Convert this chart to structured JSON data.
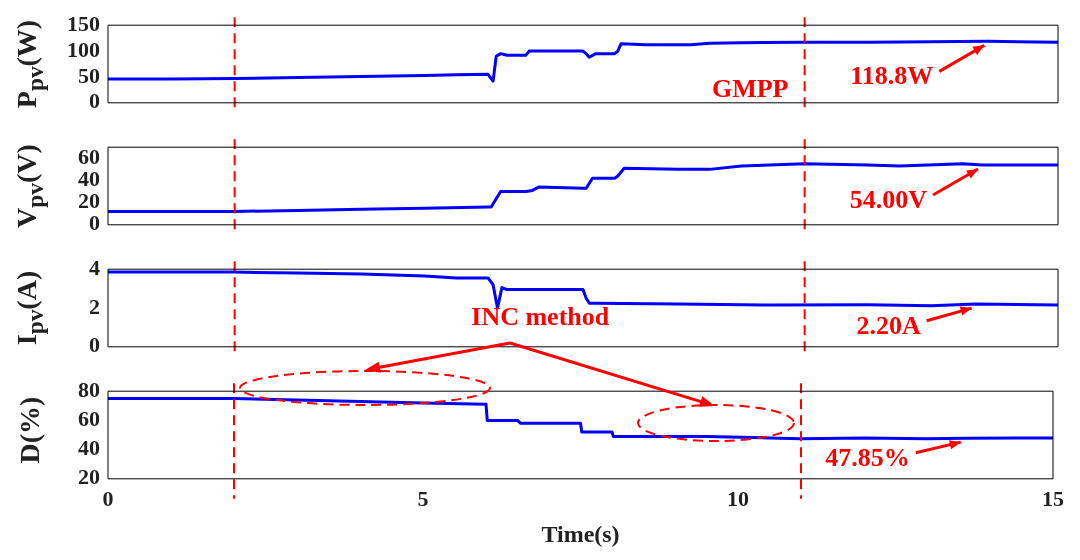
{
  "chart_data": [
    {
      "type": "line",
      "ylabel": "P$_{pv}$(W)",
      "color": "#0000ff",
      "marker": "none",
      "line_style": "solid",
      "grid": false,
      "legend": false,
      "tick_labels": "y",
      "x": [
        0,
        1,
        2,
        3,
        4,
        5,
        5.5,
        6.0,
        6.08,
        6.13,
        6.2,
        6.3,
        6.6,
        6.65,
        7.5,
        7.55,
        7.6,
        7.7,
        8.0,
        8.05,
        8.1,
        8.5,
        9.2,
        9.5,
        10,
        11,
        12,
        13,
        13.9,
        15
      ],
      "values": [
        46,
        46,
        47,
        49,
        51,
        53,
        54,
        55,
        42,
        90,
        95,
        92,
        92,
        100,
        100,
        95,
        88,
        95,
        95,
        100,
        114,
        112,
        112,
        115,
        116,
        117,
        117,
        118,
        118.8,
        117
      ],
      "xlim": [
        0,
        15
      ],
      "xticks": [
        0,
        5,
        10,
        15
      ],
      "ylim": [
        0,
        150
      ],
      "yticks": [
        0,
        50,
        100,
        150
      ],
      "ref_lines": [
        {
          "axis": "x",
          "value": 2,
          "color": "#ff0000",
          "line_style": "dashed"
        },
        {
          "axis": "x",
          "value": 11,
          "color": "#ff0000",
          "line_style": "dashed"
        }
      ],
      "annotations": [
        "GMPP",
        {
          "text": "118.8W",
          "x": 13.9,
          "y": 118.8
        }
      ]
    },
    {
      "type": "line",
      "ylabel": "V$_{pv}$(V)",
      "color": "#0000ff",
      "marker": "none",
      "line_style": "solid",
      "grid": false,
      "legend": false,
      "tick_labels": "y",
      "x": [
        0,
        2,
        3,
        4,
        5,
        6.0,
        6.05,
        6.2,
        6.6,
        6.7,
        6.8,
        7.5,
        7.55,
        7.65,
        8.0,
        8.05,
        8.15,
        9,
        9.5,
        10,
        11,
        12,
        12.5,
        13.5,
        13.8,
        15
      ],
      "values": [
        12,
        12,
        13,
        14,
        15,
        16,
        16,
        30,
        30,
        31,
        34,
        33,
        33,
        42,
        42,
        44,
        51,
        50,
        50,
        53,
        55,
        54,
        53,
        55,
        54,
        54
      ],
      "xlim": [
        0,
        15
      ],
      "xticks": [
        0,
        5,
        10,
        15
      ],
      "ylim": [
        0,
        70
      ],
      "yticks": [
        0,
        20,
        40,
        60
      ],
      "ref_lines": [
        {
          "axis": "x",
          "value": 2,
          "color": "#ff0000",
          "line_style": "dashed"
        },
        {
          "axis": "x",
          "value": 11,
          "color": "#ff0000",
          "line_style": "dashed"
        }
      ],
      "annotations": [
        {
          "text": "54.00V",
          "x": 13.8,
          "y": 54
        }
      ]
    },
    {
      "type": "line",
      "ylabel": "I$_{pv}$(A)",
      "color": "#0000ff",
      "marker": "none",
      "line_style": "solid",
      "grid": false,
      "legend": false,
      "tick_labels": "y",
      "x": [
        0,
        2,
        3,
        4,
        5,
        5.5,
        6.0,
        6.08,
        6.15,
        6.22,
        6.3,
        6.6,
        7.5,
        7.55,
        7.6,
        7.7,
        9,
        10.5,
        12,
        13,
        13.7,
        15
      ],
      "values": [
        3.85,
        3.85,
        3.8,
        3.75,
        3.65,
        3.55,
        3.55,
        3.2,
        2.0,
        3.05,
        2.95,
        2.95,
        2.95,
        2.5,
        2.25,
        2.25,
        2.2,
        2.15,
        2.17,
        2.12,
        2.2,
        2.15
      ],
      "xlim": [
        0,
        15
      ],
      "xticks": [
        0,
        5,
        10,
        15
      ],
      "ylim": [
        0,
        4
      ],
      "yticks": [
        0,
        2,
        4
      ],
      "ref_lines": [
        {
          "axis": "x",
          "value": 2,
          "color": "#ff0000",
          "line_style": "dashed"
        },
        {
          "axis": "x",
          "value": 11,
          "color": "#ff0000",
          "line_style": "dashed"
        }
      ],
      "annotations": [
        "INC method",
        {
          "text": "2.20A",
          "x": 13.7,
          "y": 2.2
        }
      ]
    },
    {
      "type": "line",
      "ylabel": "D(%)",
      "xlabel": "Time(s)",
      "color": "#0000ff",
      "marker": "none",
      "line_style": "solid",
      "grid": false,
      "legend": false,
      "x": [
        0,
        2,
        3,
        4,
        5,
        6.0,
        6.02,
        6.5,
        6.55,
        7.5,
        7.52,
        8.0,
        8.02,
        9.5,
        10.5,
        11,
        12,
        13,
        13.6,
        15
      ],
      "values": [
        75,
        75,
        74,
        73,
        72,
        71,
        60,
        60,
        58,
        58,
        52,
        52,
        49,
        49,
        48,
        47.5,
        48,
        47.5,
        47.85,
        48
      ],
      "xlim": [
        0,
        15
      ],
      "xticks": [
        0,
        5,
        10,
        15
      ],
      "ylim": [
        20,
        80
      ],
      "yticks": [
        20,
        40,
        60,
        80
      ],
      "ref_lines": [
        {
          "axis": "x",
          "value": 2,
          "color": "#ff0000",
          "line_style": "dashed"
        },
        {
          "axis": "x",
          "value": 11,
          "color": "#ff0000",
          "line_style": "dashed"
        }
      ],
      "annotations": [
        {
          "text": "47.85%",
          "x": 13.6,
          "y": 47.85
        }
      ]
    }
  ]
}
